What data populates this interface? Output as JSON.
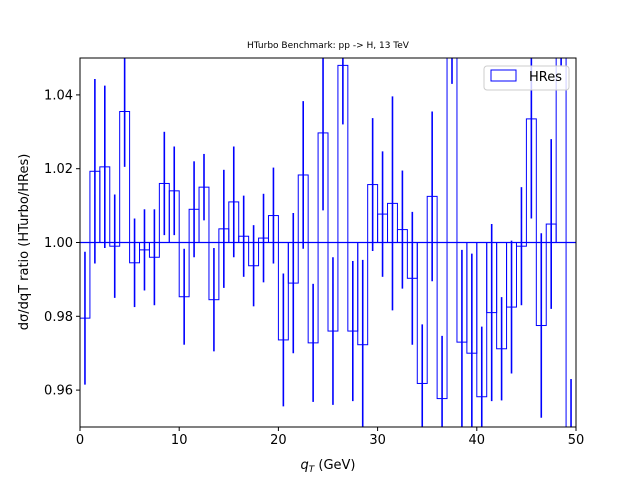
{
  "chart_data": {
    "type": "bar",
    "title": "HTurbo Benchmark: pp -> H, 13 TeV",
    "xlabel_main": "q",
    "xlabel_sub": "T",
    "xlabel_rest": " (GeV)",
    "ylabel": "dσ/dqT ratio (HTurbo/HRes)",
    "xlim": [
      0,
      50
    ],
    "ylim": [
      0.95,
      1.05
    ],
    "xticks": [
      0,
      10,
      20,
      30,
      40,
      50
    ],
    "yticks": [
      0.96,
      0.98,
      1.0,
      1.02,
      1.04
    ],
    "xtick_labels": [
      "0",
      "10",
      "20",
      "30",
      "40",
      "50"
    ],
    "ytick_labels": [
      "0.96",
      "0.98",
      "1.00",
      "1.02",
      "1.04"
    ],
    "reference_line": 1.0,
    "color": "#0000ff",
    "legend": {
      "label": "HRes",
      "position": "top-right"
    },
    "bin_width": 1,
    "bin_edges_start": 0,
    "values": [
      0.9795,
      1.0193,
      1.0205,
      0.999,
      1.0355,
      0.9945,
      0.998,
      0.996,
      1.016,
      1.014,
      0.9853,
      1.009,
      1.015,
      0.9845,
      1.0037,
      1.011,
      1.0017,
      0.9937,
      1.0012,
      1.0073,
      0.9736,
      0.989,
      1.0183,
      0.9728,
      1.0297,
      0.976,
      1.048,
      0.976,
      0.9723,
      1.0157,
      1.0077,
      1.0106,
      1.0035,
      0.9903,
      0.9618,
      1.0125,
      0.9577,
      1.08,
      0.973,
      0.97,
      0.9582,
      0.981,
      0.9712,
      0.9825,
      0.999,
      1.0335,
      0.9775,
      1.005,
      1.06,
      0.95
    ],
    "errors": [
      0.018,
      0.025,
      0.022,
      0.014,
      0.015,
      0.012,
      0.011,
      0.013,
      0.014,
      0.012,
      0.013,
      0.013,
      0.009,
      0.014,
      0.016,
      0.015,
      0.011,
      0.011,
      0.012,
      0.013,
      0.018,
      0.019,
      0.02,
      0.016,
      0.021,
      0.02,
      0.016,
      0.019,
      0.023,
      0.018,
      0.017,
      0.029,
      0.016,
      0.018,
      0.016,
      0.023,
      0.017,
      0.037,
      0.025,
      0.027,
      0.019,
      0.024,
      0.014,
      0.018,
      0.016,
      0.027,
      0.025,
      0.023,
      0.012,
      0.013
    ]
  }
}
